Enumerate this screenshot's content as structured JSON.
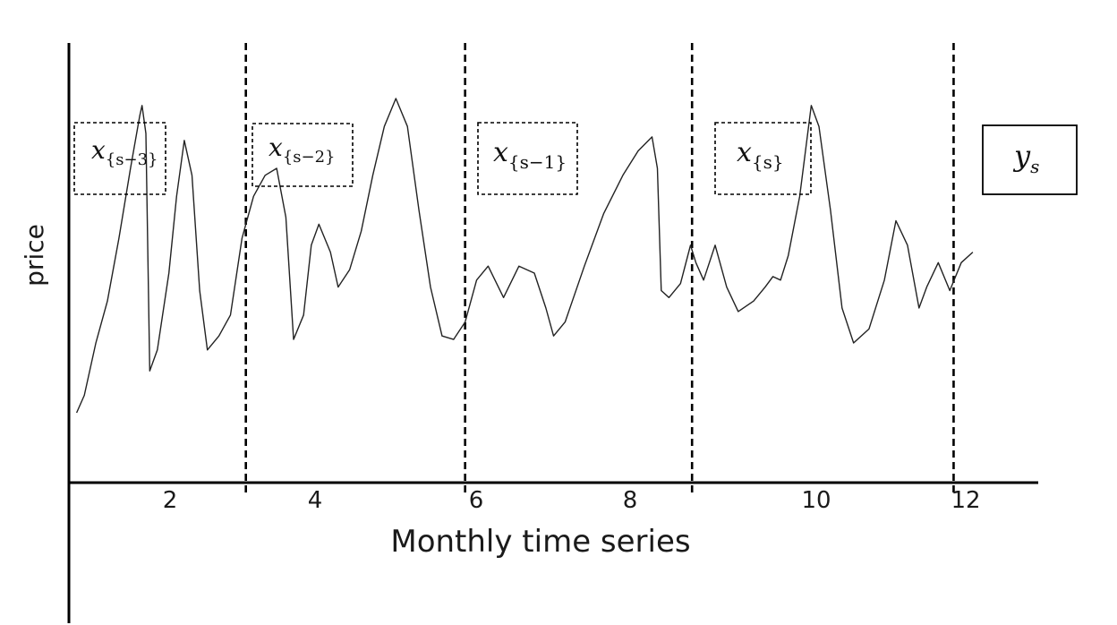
{
  "chart_data": {
    "type": "line",
    "xlabel": "Monthly time series",
    "ylabel": "price",
    "xlim": [
      0.8,
      13.4
    ],
    "x_ticks": [
      "2",
      "4",
      "6",
      "8",
      "10",
      "12"
    ],
    "split_lines_x": [
      3.1,
      5.95,
      8.9,
      12.3
    ],
    "windows": [
      {
        "main": "x",
        "sub": "{s−3}"
      },
      {
        "main": "x",
        "sub": "{s−2}"
      },
      {
        "main": "x",
        "sub": "{s−1}"
      },
      {
        "main": "x",
        "sub": "{s}"
      }
    ],
    "target": {
      "main": "y",
      "sub": "s"
    },
    "series": [
      {
        "values_relative": [
          [
            0.9,
            0.1
          ],
          [
            1.0,
            0.15
          ],
          [
            1.15,
            0.3
          ],
          [
            1.3,
            0.42
          ],
          [
            1.45,
            0.6
          ],
          [
            1.6,
            0.8
          ],
          [
            1.72,
            0.95
          ],
          [
            1.75,
            0.98
          ],
          [
            1.8,
            0.9
          ],
          [
            1.85,
            0.22
          ],
          [
            1.95,
            0.28
          ],
          [
            2.1,
            0.5
          ],
          [
            2.2,
            0.72
          ],
          [
            2.3,
            0.88
          ],
          [
            2.4,
            0.78
          ],
          [
            2.5,
            0.45
          ],
          [
            2.6,
            0.28
          ],
          [
            2.75,
            0.32
          ],
          [
            2.9,
            0.38
          ],
          [
            3.05,
            0.6
          ],
          [
            3.2,
            0.72
          ],
          [
            3.35,
            0.78
          ],
          [
            3.5,
            0.8
          ],
          [
            3.62,
            0.66
          ],
          [
            3.72,
            0.31
          ],
          [
            3.85,
            0.38
          ],
          [
            3.95,
            0.58
          ],
          [
            4.05,
            0.64
          ],
          [
            4.2,
            0.56
          ],
          [
            4.3,
            0.46
          ],
          [
            4.45,
            0.51
          ],
          [
            4.6,
            0.62
          ],
          [
            4.75,
            0.78
          ],
          [
            4.9,
            0.92
          ],
          [
            5.05,
            1.0
          ],
          [
            5.2,
            0.92
          ],
          [
            5.35,
            0.68
          ],
          [
            5.5,
            0.46
          ],
          [
            5.65,
            0.32
          ],
          [
            5.8,
            0.31
          ],
          [
            5.95,
            0.36
          ],
          [
            6.1,
            0.48
          ],
          [
            6.25,
            0.52
          ],
          [
            6.45,
            0.43
          ],
          [
            6.65,
            0.52
          ],
          [
            6.85,
            0.5
          ],
          [
            7.0,
            0.4
          ],
          [
            7.1,
            0.32
          ],
          [
            7.25,
            0.36
          ],
          [
            7.5,
            0.52
          ],
          [
            7.75,
            0.67
          ],
          [
            8.0,
            0.78
          ],
          [
            8.2,
            0.85
          ],
          [
            8.38,
            0.89
          ],
          [
            8.45,
            0.8
          ],
          [
            8.5,
            0.45
          ],
          [
            8.6,
            0.43
          ],
          [
            8.75,
            0.47
          ],
          [
            8.88,
            0.58
          ],
          [
            8.95,
            0.53
          ],
          [
            9.05,
            0.48
          ],
          [
            9.2,
            0.58
          ],
          [
            9.35,
            0.46
          ],
          [
            9.5,
            0.39
          ],
          [
            9.7,
            0.42
          ],
          [
            9.85,
            0.46
          ],
          [
            9.95,
            0.49
          ],
          [
            10.05,
            0.48
          ],
          [
            10.15,
            0.55
          ],
          [
            10.3,
            0.72
          ],
          [
            10.45,
            0.98
          ],
          [
            10.55,
            0.92
          ],
          [
            10.7,
            0.68
          ],
          [
            10.85,
            0.4
          ],
          [
            11.0,
            0.3
          ],
          [
            11.2,
            0.34
          ],
          [
            11.4,
            0.48
          ],
          [
            11.55,
            0.65
          ],
          [
            11.7,
            0.58
          ],
          [
            11.85,
            0.4
          ],
          [
            11.95,
            0.46
          ],
          [
            12.1,
            0.53
          ],
          [
            12.25,
            0.45
          ],
          [
            12.4,
            0.53
          ],
          [
            12.55,
            0.56
          ]
        ]
      }
    ]
  }
}
